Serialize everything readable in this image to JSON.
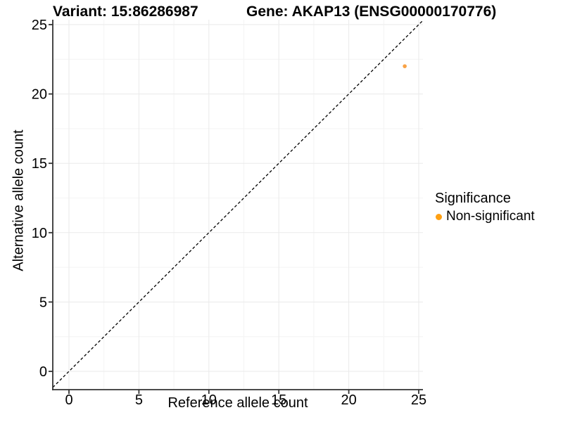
{
  "titles": {
    "variant": "Variant: 15:86286987",
    "gene": "Gene: AKAP13 (ENSG00000170776)"
  },
  "chart_data": {
    "type": "scatter",
    "title": "Variant: 15:86286987",
    "subtitle": "Gene: AKAP13 (ENSG00000170776)",
    "xlabel": "Reference allele count",
    "ylabel": "Alternative allele count",
    "xlim": [
      0,
      25
    ],
    "ylim": [
      0,
      25
    ],
    "xticks": [
      0,
      5,
      10,
      15,
      20,
      25
    ],
    "yticks": [
      0,
      5,
      10,
      15,
      20,
      25
    ],
    "grid": "major+minor",
    "points": [
      {
        "x": 24,
        "y": 22,
        "series": "Non-significant",
        "color": "#F9A245"
      }
    ],
    "reference_line": {
      "slope": 1,
      "intercept": 0,
      "style": "dashed",
      "color": "#000000"
    },
    "legend": {
      "title": "Significance",
      "position": "right",
      "entries": [
        {
          "label": "Non-significant",
          "color": "#FFA013"
        }
      ]
    },
    "style": {
      "grid_major": "#EAEAEA",
      "grid_minor": "#F4F4F4",
      "axis_color": "#333333",
      "tick_label_color": "#000000",
      "background": "#FFFFFF"
    }
  }
}
